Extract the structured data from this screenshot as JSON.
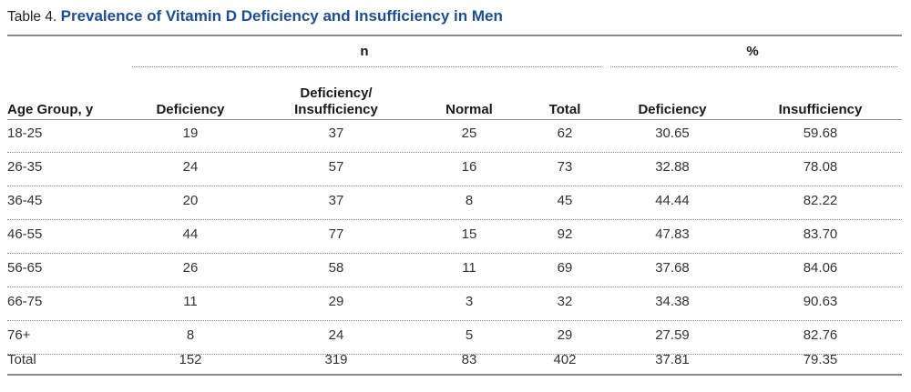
{
  "table": {
    "label": "Table 4.",
    "title": "Prevalence of Vitamin D Deficiency and Insufficiency in Men",
    "group_n": "n",
    "group_pct": "%",
    "headers": {
      "age": "Age Group, y",
      "deficiency": "Deficiency",
      "def_insuff_line1": "Deficiency/",
      "def_insuff_line2": "Insufficiency",
      "normal": "Normal",
      "total": "Total",
      "pct_deficiency": "Deficiency",
      "pct_insufficiency": "Insufficiency"
    },
    "rows": [
      {
        "age": "18-25",
        "deficiency": "19",
        "def_insuff": "37",
        "normal": "25",
        "total": "62",
        "pct_def": "30.65",
        "pct_ins": "59.68"
      },
      {
        "age": "26-35",
        "deficiency": "24",
        "def_insuff": "57",
        "normal": "16",
        "total": "73",
        "pct_def": "32.88",
        "pct_ins": "78.08"
      },
      {
        "age": "36-45",
        "deficiency": "20",
        "def_insuff": "37",
        "normal": "8",
        "total": "45",
        "pct_def": "44.44",
        "pct_ins": "82.22"
      },
      {
        "age": "46-55",
        "deficiency": "44",
        "def_insuff": "77",
        "normal": "15",
        "total": "92",
        "pct_def": "47.83",
        "pct_ins": "83.70"
      },
      {
        "age": "56-65",
        "deficiency": "26",
        "def_insuff": "58",
        "normal": "11",
        "total": "69",
        "pct_def": "37.68",
        "pct_ins": "84.06"
      },
      {
        "age": "66-75",
        "deficiency": "11",
        "def_insuff": "29",
        "normal": "3",
        "total": "32",
        "pct_def": "34.38",
        "pct_ins": "90.63"
      },
      {
        "age": "76+",
        "deficiency": "8",
        "def_insuff": "24",
        "normal": "5",
        "total": "29",
        "pct_def": "27.59",
        "pct_ins": "82.76"
      },
      {
        "age": "Total",
        "deficiency": "152",
        "def_insuff": "319",
        "normal": "83",
        "total": "402",
        "pct_def": "37.81",
        "pct_ins": "79.35"
      }
    ],
    "colors": {
      "title": "#1d4f8f",
      "rule": "#8c8c8c"
    }
  }
}
